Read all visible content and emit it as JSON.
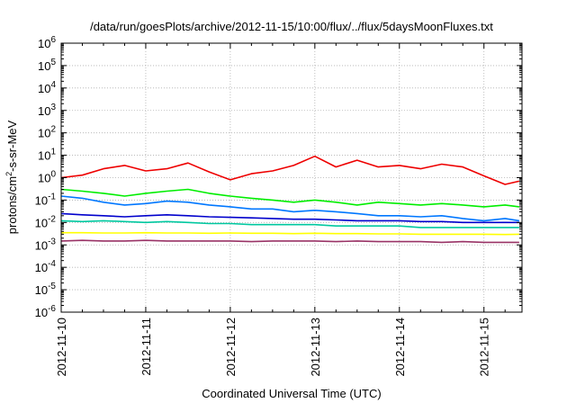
{
  "chart_data": {
    "type": "line",
    "title": "/data/run/goesPlots/archive/2012-11-15/10:00/flux/../flux/5daysMoonFluxes.txt",
    "xlabel": "Coordinated Universal Time (UTC)",
    "ylabel_main": "protons/cm",
    "ylabel_sup": "2",
    "ylabel_tail": "-s-sr-MeV",
    "yscale": "log",
    "ylim": [
      1e-06,
      1000000.0
    ],
    "xlim_days": [
      0,
      5.45
    ],
    "grid": true,
    "yticks": [
      {
        "base": "10",
        "exp": "6"
      },
      {
        "base": "10",
        "exp": "5"
      },
      {
        "base": "10",
        "exp": "4"
      },
      {
        "base": "10",
        "exp": "3"
      },
      {
        "base": "10",
        "exp": "2"
      },
      {
        "base": "10",
        "exp": "1"
      },
      {
        "base": "10",
        "exp": "0"
      },
      {
        "base": "10",
        "exp": "-1"
      },
      {
        "base": "10",
        "exp": "-2"
      },
      {
        "base": "10",
        "exp": "-3"
      },
      {
        "base": "10",
        "exp": "-4"
      },
      {
        "base": "10",
        "exp": "-5"
      },
      {
        "base": "10",
        "exp": "-6"
      }
    ],
    "xticks": [
      "2012-11-10",
      "2012-11-11",
      "2012-11-12",
      "2012-11-13",
      "2012-11-14",
      "2012-11-15"
    ],
    "series": [
      {
        "color": "#ee0000",
        "x": [
          "2012-11-10 00:00",
          "2012-11-10 06:00",
          "2012-11-10 12:00",
          "2012-11-10 18:00",
          "2012-11-11 00:00",
          "2012-11-11 06:00",
          "2012-11-11 12:00",
          "2012-11-11 18:00",
          "2012-11-12 00:00",
          "2012-11-12 06:00",
          "2012-11-12 12:00",
          "2012-11-12 18:00",
          "2012-11-13 00:00",
          "2012-11-13 06:00",
          "2012-11-13 12:00",
          "2012-11-13 18:00",
          "2012-11-14 00:00",
          "2012-11-14 06:00",
          "2012-11-14 12:00",
          "2012-11-14 18:00",
          "2012-11-15 00:00",
          "2012-11-15 06:00",
          "2012-11-15 10:00"
        ],
        "y": [
          1.0,
          1.3,
          2.5,
          3.5,
          2.0,
          2.5,
          4.5,
          1.8,
          0.8,
          1.5,
          2.0,
          3.5,
          9.0,
          3.0,
          6.0,
          3.0,
          3.5,
          2.5,
          4.0,
          3.0,
          1.2,
          0.5,
          0.7
        ]
      },
      {
        "color": "#00ee00",
        "x": [
          "2012-11-10 00:00",
          "2012-11-10 06:00",
          "2012-11-10 12:00",
          "2012-11-10 18:00",
          "2012-11-11 00:00",
          "2012-11-11 06:00",
          "2012-11-11 12:00",
          "2012-11-11 18:00",
          "2012-11-12 00:00",
          "2012-11-12 06:00",
          "2012-11-12 12:00",
          "2012-11-12 18:00",
          "2012-11-13 00:00",
          "2012-11-13 06:00",
          "2012-11-13 12:00",
          "2012-11-13 18:00",
          "2012-11-14 00:00",
          "2012-11-14 06:00",
          "2012-11-14 12:00",
          "2012-11-14 18:00",
          "2012-11-15 00:00",
          "2012-11-15 06:00",
          "2012-11-15 10:00"
        ],
        "y": [
          0.3,
          0.25,
          0.2,
          0.15,
          0.2,
          0.25,
          0.3,
          0.2,
          0.15,
          0.12,
          0.1,
          0.08,
          0.1,
          0.08,
          0.06,
          0.08,
          0.07,
          0.06,
          0.07,
          0.06,
          0.05,
          0.06,
          0.05
        ]
      },
      {
        "color": "#0077ff",
        "x": [
          "2012-11-10 00:00",
          "2012-11-10 06:00",
          "2012-11-10 12:00",
          "2012-11-10 18:00",
          "2012-11-11 00:00",
          "2012-11-11 06:00",
          "2012-11-11 12:00",
          "2012-11-11 18:00",
          "2012-11-12 00:00",
          "2012-11-12 06:00",
          "2012-11-12 12:00",
          "2012-11-12 18:00",
          "2012-11-13 00:00",
          "2012-11-13 06:00",
          "2012-11-13 12:00",
          "2012-11-13 18:00",
          "2012-11-14 00:00",
          "2012-11-14 06:00",
          "2012-11-14 12:00",
          "2012-11-14 18:00",
          "2012-11-15 00:00",
          "2012-11-15 06:00",
          "2012-11-15 10:00"
        ],
        "y": [
          0.15,
          0.12,
          0.08,
          0.06,
          0.07,
          0.09,
          0.08,
          0.06,
          0.05,
          0.04,
          0.04,
          0.03,
          0.035,
          0.03,
          0.025,
          0.02,
          0.02,
          0.018,
          0.02,
          0.015,
          0.012,
          0.015,
          0.012
        ]
      },
      {
        "color": "#0000cc",
        "x": [
          "2012-11-10 00:00",
          "2012-11-10 06:00",
          "2012-11-10 12:00",
          "2012-11-10 18:00",
          "2012-11-11 00:00",
          "2012-11-11 06:00",
          "2012-11-11 12:00",
          "2012-11-11 18:00",
          "2012-11-12 00:00",
          "2012-11-12 06:00",
          "2012-11-12 12:00",
          "2012-11-12 18:00",
          "2012-11-13 00:00",
          "2012-11-13 06:00",
          "2012-11-13 12:00",
          "2012-11-13 18:00",
          "2012-11-14 00:00",
          "2012-11-14 06:00",
          "2012-11-14 12:00",
          "2012-11-14 18:00",
          "2012-11-15 00:00",
          "2012-11-15 06:00",
          "2012-11-15 10:00"
        ],
        "y": [
          0.025,
          0.022,
          0.02,
          0.018,
          0.02,
          0.022,
          0.02,
          0.018,
          0.017,
          0.016,
          0.015,
          0.014,
          0.014,
          0.013,
          0.012,
          0.012,
          0.012,
          0.011,
          0.011,
          0.01,
          0.01,
          0.01,
          0.01
        ]
      },
      {
        "color": "#00c8a0",
        "x": [
          "2012-11-10 00:00",
          "2012-11-10 06:00",
          "2012-11-10 12:00",
          "2012-11-10 18:00",
          "2012-11-11 00:00",
          "2012-11-11 06:00",
          "2012-11-11 12:00",
          "2012-11-11 18:00",
          "2012-11-12 00:00",
          "2012-11-12 06:00",
          "2012-11-12 12:00",
          "2012-11-12 18:00",
          "2012-11-13 00:00",
          "2012-11-13 06:00",
          "2012-11-13 12:00",
          "2012-11-13 18:00",
          "2012-11-14 00:00",
          "2012-11-14 06:00",
          "2012-11-14 12:00",
          "2012-11-14 18:00",
          "2012-11-15 00:00",
          "2012-11-15 06:00",
          "2012-11-15 10:00"
        ],
        "y": [
          0.012,
          0.011,
          0.012,
          0.011,
          0.01,
          0.011,
          0.01,
          0.009,
          0.009,
          0.008,
          0.008,
          0.008,
          0.008,
          0.007,
          0.007,
          0.007,
          0.007,
          0.006,
          0.006,
          0.006,
          0.006,
          0.006,
          0.006
        ]
      },
      {
        "color": "#ffff00",
        "x": [
          "2012-11-10 00:00",
          "2012-11-10 06:00",
          "2012-11-10 12:00",
          "2012-11-10 18:00",
          "2012-11-11 00:00",
          "2012-11-11 06:00",
          "2012-11-11 12:00",
          "2012-11-11 18:00",
          "2012-11-12 00:00",
          "2012-11-12 06:00",
          "2012-11-12 12:00",
          "2012-11-12 18:00",
          "2012-11-13 00:00",
          "2012-11-13 06:00",
          "2012-11-13 12:00",
          "2012-11-13 18:00",
          "2012-11-14 00:00",
          "2012-11-14 06:00",
          "2012-11-14 12:00",
          "2012-11-14 18:00",
          "2012-11-15 00:00",
          "2012-11-15 06:00",
          "2012-11-15 10:00"
        ],
        "y": [
          0.0035,
          0.0035,
          0.0034,
          0.0034,
          0.0035,
          0.0034,
          0.0034,
          0.0033,
          0.0034,
          0.0033,
          0.0033,
          0.0032,
          0.0033,
          0.0032,
          0.0032,
          0.0031,
          0.0031,
          0.003,
          0.003,
          0.003,
          0.003,
          0.0029,
          0.003
        ]
      },
      {
        "color": "#993366",
        "x": [
          "2012-11-10 00:00",
          "2012-11-10 06:00",
          "2012-11-10 12:00",
          "2012-11-10 18:00",
          "2012-11-11 00:00",
          "2012-11-11 06:00",
          "2012-11-11 12:00",
          "2012-11-11 18:00",
          "2012-11-12 00:00",
          "2012-11-12 06:00",
          "2012-11-12 12:00",
          "2012-11-12 18:00",
          "2012-11-13 00:00",
          "2012-11-13 06:00",
          "2012-11-13 12:00",
          "2012-11-13 18:00",
          "2012-11-14 00:00",
          "2012-11-14 06:00",
          "2012-11-14 12:00",
          "2012-11-14 18:00",
          "2012-11-15 00:00",
          "2012-11-15 06:00",
          "2012-11-15 10:00"
        ],
        "y": [
          0.0015,
          0.0016,
          0.0015,
          0.0015,
          0.0016,
          0.0015,
          0.0015,
          0.0015,
          0.0015,
          0.0014,
          0.0015,
          0.0015,
          0.0015,
          0.0014,
          0.0015,
          0.0014,
          0.0014,
          0.0014,
          0.0013,
          0.0014,
          0.0013,
          0.0013,
          0.0013
        ]
      }
    ]
  }
}
